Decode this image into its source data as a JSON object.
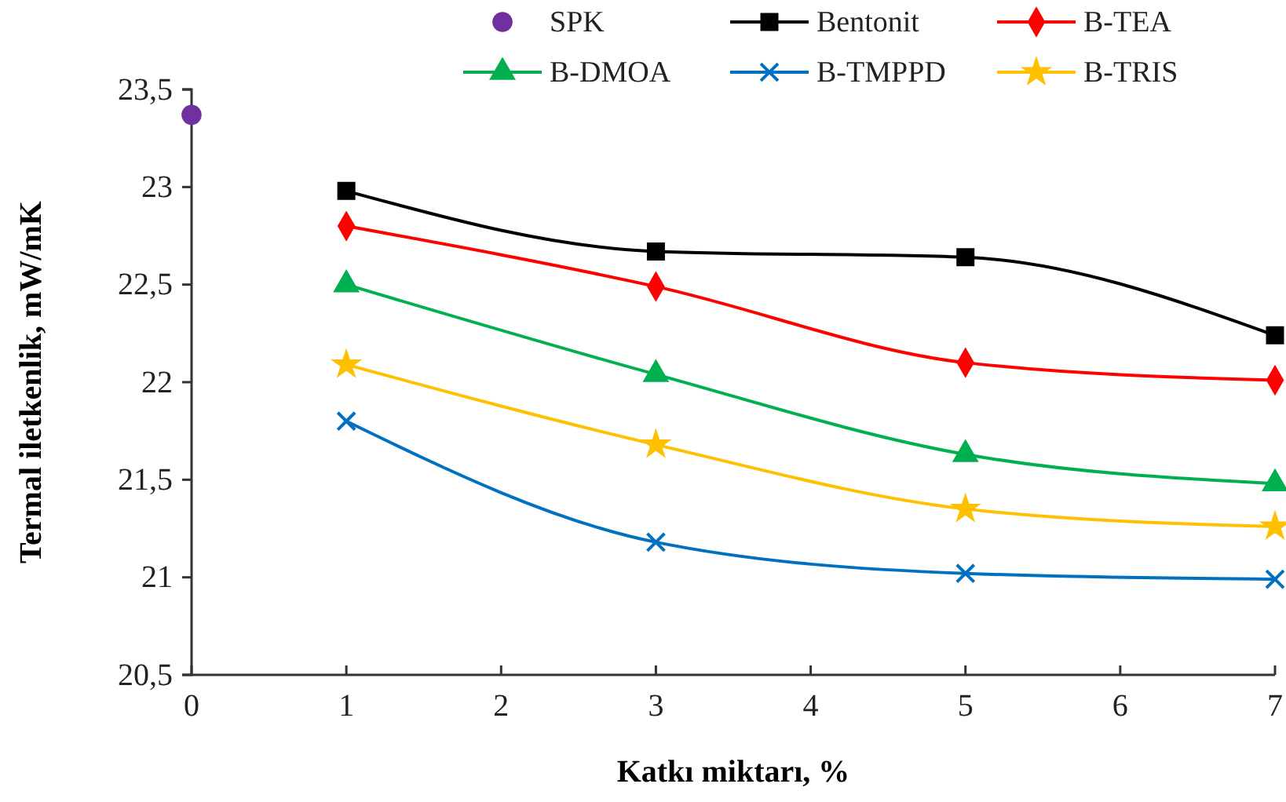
{
  "chart_data": {
    "type": "line",
    "xlabel": "Katkı miktarı, %",
    "ylabel": "Termal iletkenlik, mW/mK",
    "xlim": [
      0,
      7
    ],
    "xticks": [
      0,
      1,
      2,
      3,
      4,
      5,
      6,
      7
    ],
    "ylim": [
      20.5,
      23.5
    ],
    "yticks": [
      {
        "value": 20.5,
        "label": "20,5"
      },
      21,
      {
        "value": 21.5,
        "label": "21,5"
      },
      22,
      {
        "value": 22.5,
        "label": "22,5"
      },
      23,
      {
        "value": 23.5,
        "label": "23,5"
      }
    ],
    "legend": "top",
    "grid": false,
    "series": [
      {
        "name": "SPK",
        "type": "scatter",
        "marker": "circle",
        "color": "#7030a0",
        "x": [
          0
        ],
        "values": [
          23.37
        ]
      },
      {
        "name": "Bentonit",
        "marker": "square",
        "color": "#000000",
        "x": [
          1,
          3,
          5,
          7
        ],
        "values": [
          22.98,
          22.67,
          22.64,
          22.24
        ]
      },
      {
        "name": "B-TEA",
        "marker": "diamond",
        "color": "#ff0000",
        "x": [
          1,
          3,
          5,
          7
        ],
        "values": [
          22.8,
          22.49,
          22.1,
          22.01
        ]
      },
      {
        "name": "B-DMOA",
        "marker": "triangle",
        "color": "#00b050",
        "x": [
          1,
          3,
          5,
          7
        ],
        "values": [
          22.5,
          22.04,
          21.63,
          21.48
        ]
      },
      {
        "name": "B-TMPPD",
        "marker": "cross",
        "color": "#0070c0",
        "x": [
          1,
          3,
          5,
          7
        ],
        "values": [
          21.8,
          21.18,
          21.02,
          20.99
        ]
      },
      {
        "name": "B-TRIS",
        "marker": "star",
        "color": "#ffc000",
        "x": [
          1,
          3,
          5,
          7
        ],
        "values": [
          22.09,
          21.68,
          21.35,
          21.26
        ]
      }
    ]
  }
}
